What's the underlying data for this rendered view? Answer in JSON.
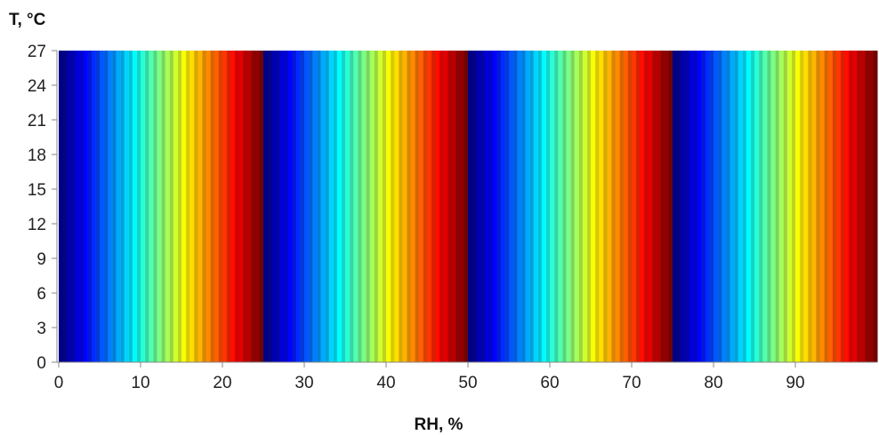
{
  "chart_data": {
    "type": "heatmap",
    "title": "",
    "xlabel": "RH, %",
    "ylabel": "T, °C",
    "x_ticks": [
      0,
      10,
      20,
      30,
      40,
      50,
      60,
      70,
      80,
      90
    ],
    "y_ticks": [
      0,
      3,
      6,
      9,
      12,
      15,
      18,
      21,
      24,
      27
    ],
    "xlim": [
      0,
      100
    ],
    "ylim": [
      0,
      27
    ],
    "colormap": "jet",
    "cycle_period_rh": 25,
    "cycle_starts_rh": [
      0,
      25,
      50,
      75
    ],
    "value_varies_with": "RH only (uniform along T)",
    "grid": false
  }
}
